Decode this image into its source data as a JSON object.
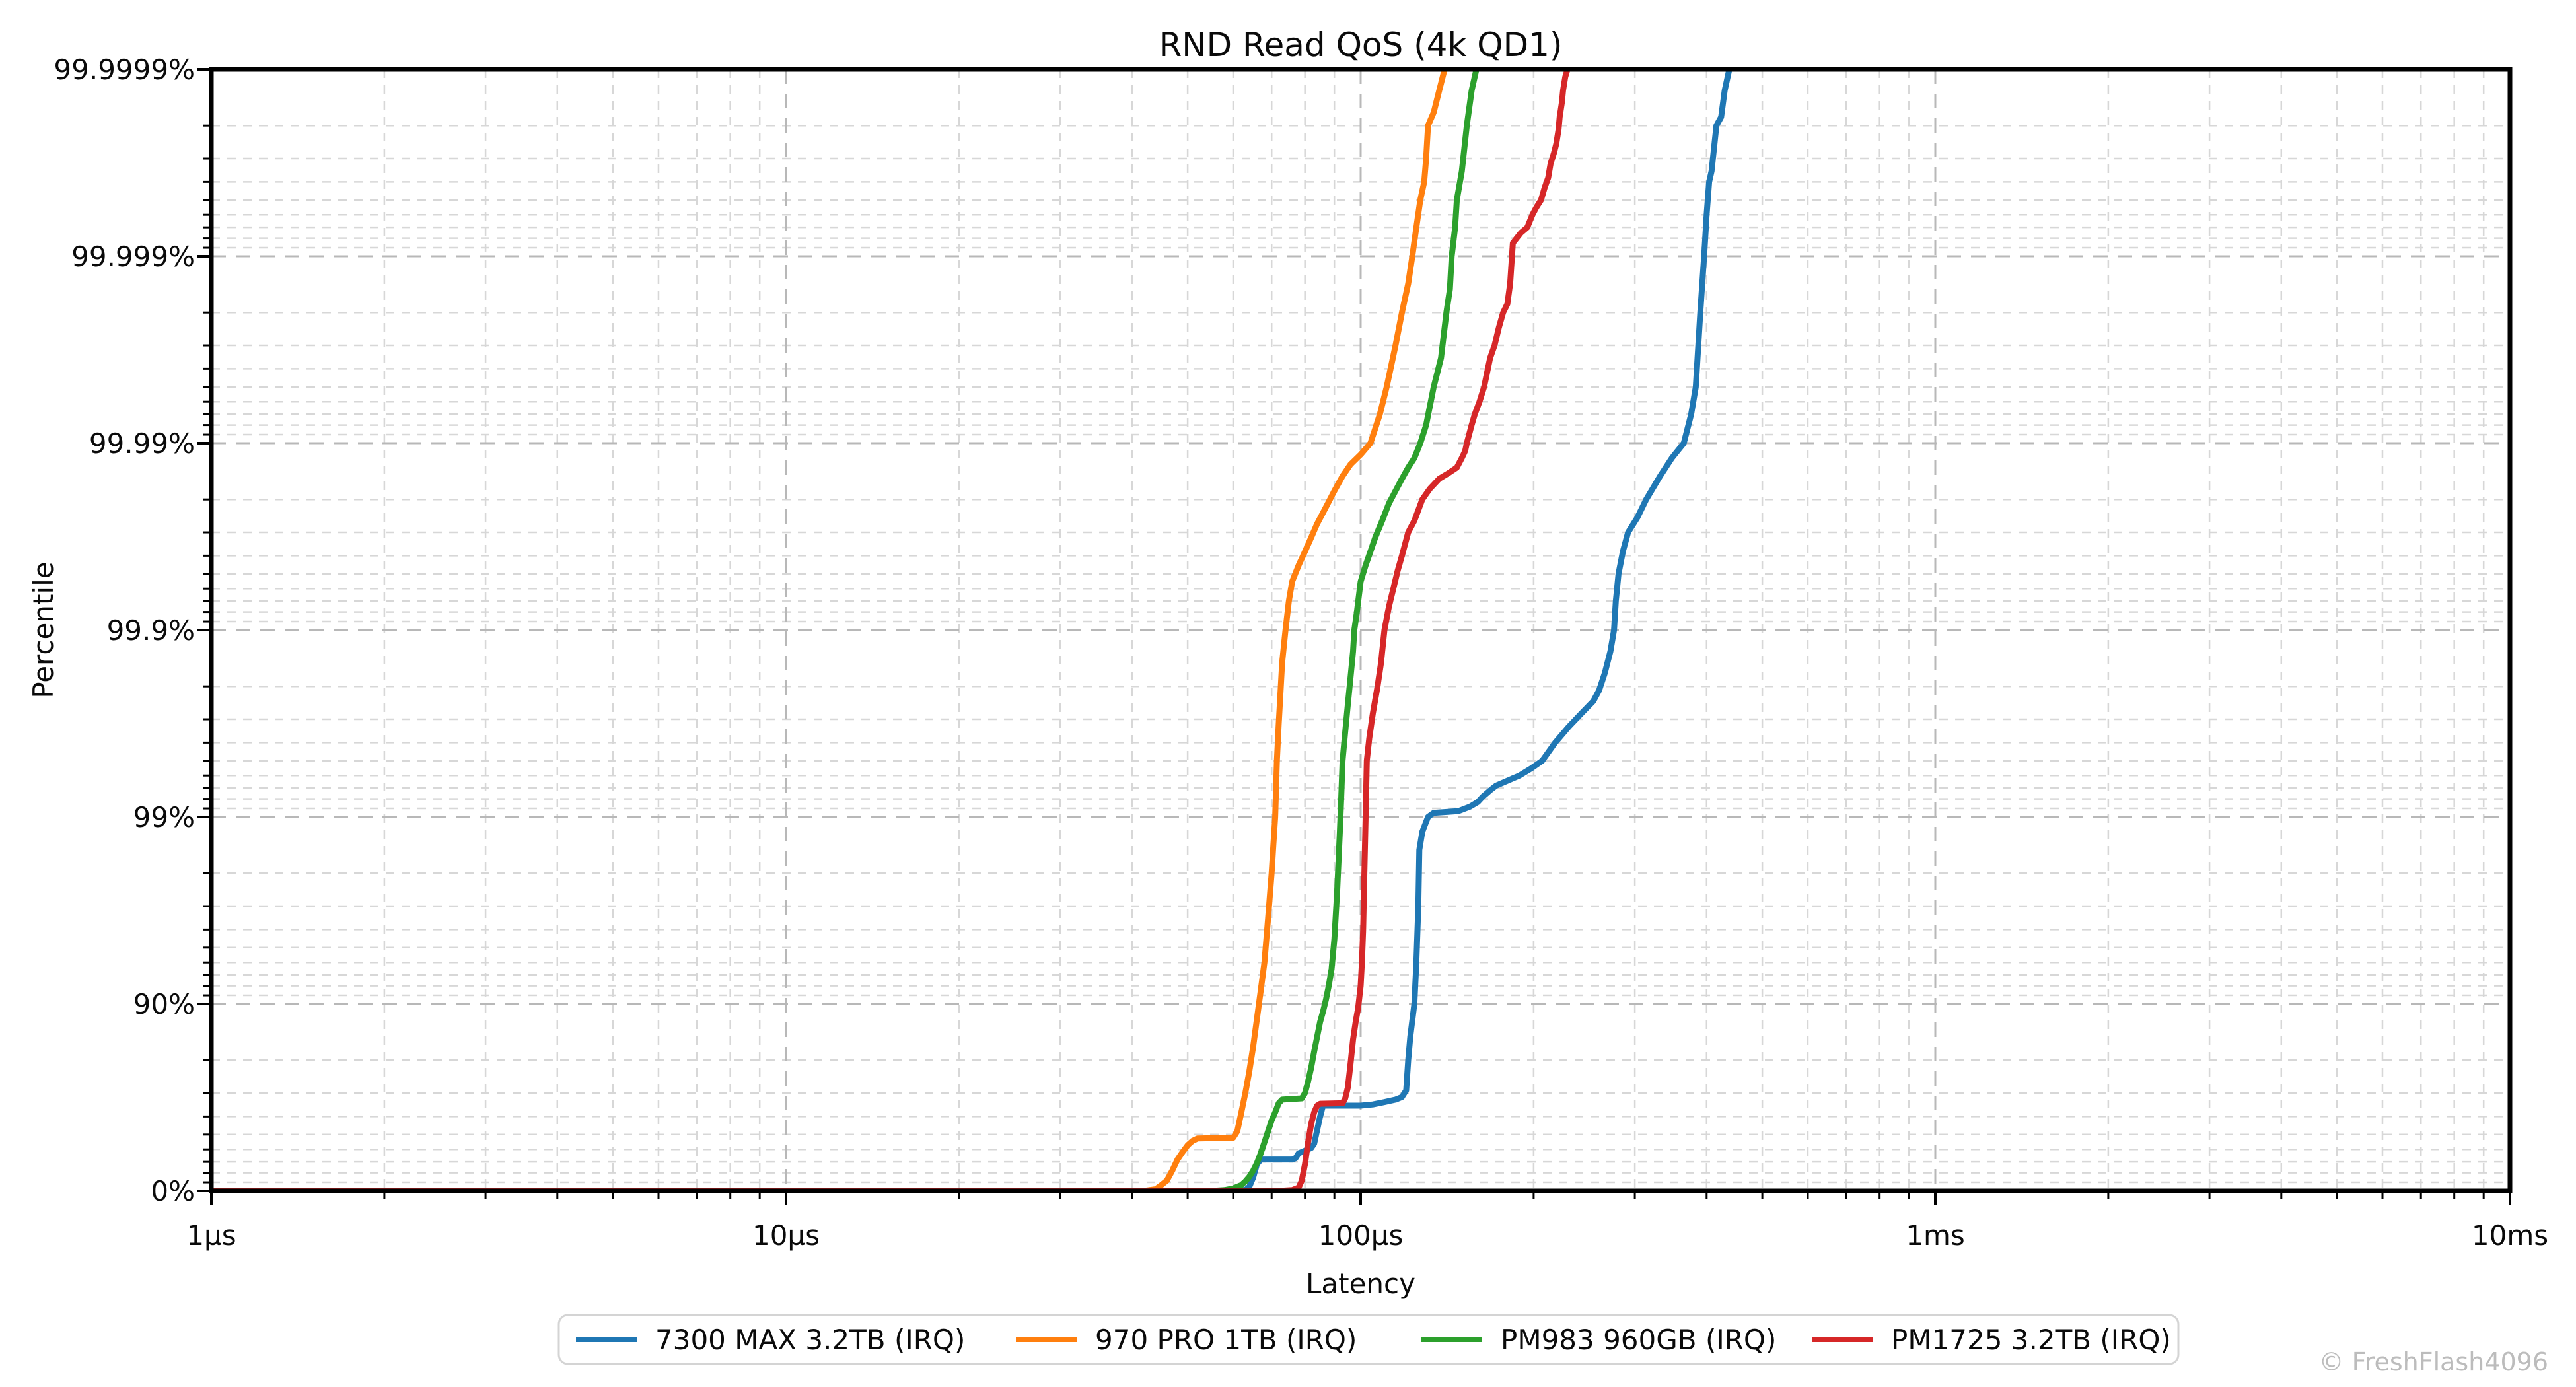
{
  "title": "RND Read QoS (4k QD1)",
  "watermark": "© FreshFlash4096",
  "chart_data": {
    "type": "line",
    "title": "RND Read QoS (4k QD1)",
    "xlabel": "Latency",
    "ylabel": "Percentile",
    "x_scale": "log",
    "x_range_us": [
      1,
      10000
    ],
    "x_tick_labels": [
      "1µs",
      "10µs",
      "100µs",
      "1ms",
      "10ms"
    ],
    "x_tick_values_us": [
      1,
      10,
      100,
      1000,
      10000
    ],
    "y_scale": "percentile, log(1/(1-p)) spacing",
    "y_tick_labels": [
      "0%",
      "90%",
      "99%",
      "99.9%",
      "99.99%",
      "99.999%",
      "99.9999%"
    ],
    "y_tick_values_pct": [
      0,
      90,
      99,
      99.9,
      99.99,
      99.999,
      99.9999
    ],
    "grid": "dashed major and minor, both axes",
    "legend_position": "bottom center",
    "series": [
      {
        "name": "7300 MAX 3.2TB (IRQ)",
        "color": "#1f77b4",
        "points_us_pct": [
          [
            1,
            0
          ],
          [
            55,
            0
          ],
          [
            63,
            1
          ],
          [
            64,
            5
          ],
          [
            65,
            15
          ],
          [
            66,
            28
          ],
          [
            67,
            32
          ],
          [
            76,
            32
          ],
          [
            77,
            33
          ],
          [
            78,
            37
          ],
          [
            80,
            39
          ],
          [
            82,
            41
          ],
          [
            83,
            44
          ],
          [
            85,
            60
          ],
          [
            86,
            65
          ],
          [
            100,
            65
          ],
          [
            105,
            65.5
          ],
          [
            110,
            66.5
          ],
          [
            115,
            67.5
          ],
          [
            118,
            68.5
          ],
          [
            120,
            71
          ],
          [
            121,
            80
          ],
          [
            122,
            85
          ],
          [
            124,
            90
          ],
          [
            125,
            94
          ],
          [
            126,
            97
          ],
          [
            126.5,
            98.5
          ],
          [
            128,
            98.8
          ],
          [
            131,
            99.0
          ],
          [
            134,
            99.05
          ],
          [
            148,
            99.07
          ],
          [
            155,
            99.12
          ],
          [
            160,
            99.17
          ],
          [
            163,
            99.22
          ],
          [
            168,
            99.28
          ],
          [
            172,
            99.32
          ],
          [
            180,
            99.36
          ],
          [
            189,
            99.4
          ],
          [
            198,
            99.45
          ],
          [
            207,
            99.5
          ],
          [
            218,
            99.6
          ],
          [
            230,
            99.67
          ],
          [
            242,
            99.72
          ],
          [
            254,
            99.76
          ],
          [
            260,
            99.79
          ],
          [
            266,
            99.83
          ],
          [
            272,
            99.87
          ],
          [
            276,
            99.9
          ],
          [
            278,
            99.93
          ],
          [
            281,
            99.95
          ],
          [
            286,
            99.962
          ],
          [
            292,
            99.97
          ],
          [
            303,
            99.975
          ],
          [
            314,
            99.98
          ],
          [
            332,
            99.985
          ],
          [
            348,
            99.988
          ],
          [
            365,
            99.99
          ],
          [
            376,
            99.993
          ],
          [
            383,
            99.995
          ],
          [
            390,
            99.998
          ],
          [
            396,
            99.999
          ],
          [
            400,
            99.9994
          ],
          [
            404,
            99.9996
          ],
          [
            408,
            99.99965
          ],
          [
            416,
            99.9998
          ],
          [
            424,
            99.99982
          ],
          [
            430,
            99.99987
          ],
          [
            438,
            99.9999
          ],
          [
            452,
            99.99993
          ],
          [
            462,
            99.99996
          ]
        ]
      },
      {
        "name": "970 PRO 1TB (IRQ)",
        "color": "#ff7f0e",
        "points_us_pct": [
          [
            1,
            0
          ],
          [
            42,
            0
          ],
          [
            44,
            2
          ],
          [
            45,
            7
          ],
          [
            46,
            12
          ],
          [
            47,
            22
          ],
          [
            48,
            32
          ],
          [
            49,
            38
          ],
          [
            50,
            43
          ],
          [
            51,
            46
          ],
          [
            52,
            47.5
          ],
          [
            60,
            48
          ],
          [
            61,
            52
          ],
          [
            62,
            62
          ],
          [
            63,
            70
          ],
          [
            64,
            77
          ],
          [
            65,
            83
          ],
          [
            66,
            88
          ],
          [
            67,
            91.5
          ],
          [
            68,
            94
          ],
          [
            69,
            96.5
          ],
          [
            70,
            98
          ],
          [
            70.5,
            98.6
          ],
          [
            71,
            99
          ],
          [
            71.5,
            99.5
          ],
          [
            72,
            99.68
          ],
          [
            72.5,
            99.78
          ],
          [
            73,
            99.85
          ],
          [
            74,
            99.9
          ],
          [
            75,
            99.93
          ],
          [
            76,
            99.945
          ],
          [
            78,
            99.955
          ],
          [
            80,
            99.962
          ],
          [
            82,
            99.968
          ],
          [
            84,
            99.973
          ],
          [
            87,
            99.978
          ],
          [
            90,
            99.982
          ],
          [
            93,
            99.985
          ],
          [
            96,
            99.987
          ],
          [
            100,
            99.9885
          ],
          [
            104,
            99.99
          ],
          [
            108,
            99.993
          ],
          [
            111,
            99.995
          ],
          [
            115,
            99.997
          ],
          [
            118,
            99.998
          ],
          [
            121,
            99.9986
          ],
          [
            123,
            99.999
          ],
          [
            125,
            99.9993
          ],
          [
            127,
            99.9995
          ],
          [
            129,
            99.9996
          ],
          [
            130,
            99.9997
          ],
          [
            131,
            99.9998
          ],
          [
            134,
            99.99983
          ],
          [
            137,
            99.99987
          ],
          [
            140,
            99.9999
          ],
          [
            145,
            99.99993
          ],
          [
            150,
            99.99996
          ]
        ]
      },
      {
        "name": "PM983 960GB (IRQ)",
        "color": "#2ca02c",
        "points_us_pct": [
          [
            1,
            0
          ],
          [
            55,
            0
          ],
          [
            58,
            1
          ],
          [
            60,
            3
          ],
          [
            62,
            7
          ],
          [
            63,
            11
          ],
          [
            64,
            16
          ],
          [
            65,
            22
          ],
          [
            66,
            29
          ],
          [
            67,
            37
          ],
          [
            68,
            45
          ],
          [
            69,
            52
          ],
          [
            70,
            58
          ],
          [
            71,
            62
          ],
          [
            72,
            66
          ],
          [
            73,
            67.5
          ],
          [
            79,
            68
          ],
          [
            80,
            70
          ],
          [
            81,
            74
          ],
          [
            82,
            78
          ],
          [
            83,
            82
          ],
          [
            84,
            85
          ],
          [
            85,
            87.5
          ],
          [
            86,
            89
          ],
          [
            87,
            90.5
          ],
          [
            88,
            92
          ],
          [
            89,
            93.5
          ],
          [
            90,
            95.5
          ],
          [
            91,
            97.5
          ],
          [
            92,
            98.8
          ],
          [
            92.5,
            99.2
          ],
          [
            93,
            99.5
          ],
          [
            94,
            99.65
          ],
          [
            95,
            99.75
          ],
          [
            96,
            99.82
          ],
          [
            97,
            99.87
          ],
          [
            97.5,
            99.9
          ],
          [
            98.5,
            99.92
          ],
          [
            100,
            99.945
          ],
          [
            102,
            99.955
          ],
          [
            104,
            99.962
          ],
          [
            106,
            99.968
          ],
          [
            109,
            99.974
          ],
          [
            112,
            99.979
          ],
          [
            115,
            99.982
          ],
          [
            118,
            99.9845
          ],
          [
            121,
            99.9865
          ],
          [
            124,
            99.988
          ],
          [
            127,
            99.99
          ],
          [
            130,
            99.992
          ],
          [
            134,
            99.995
          ],
          [
            138,
            99.9965
          ],
          [
            141,
            99.998
          ],
          [
            143,
            99.9985
          ],
          [
            144,
            99.999
          ],
          [
            146,
            99.9993
          ],
          [
            147,
            99.9995
          ],
          [
            150,
            99.99965
          ],
          [
            153,
            99.9998
          ],
          [
            156,
            99.99987
          ],
          [
            159,
            99.9999
          ],
          [
            162,
            99.99995
          ]
        ]
      },
      {
        "name": "PM1725 3.2TB (IRQ)",
        "color": "#d62728",
        "points_us_pct": [
          [
            1,
            0
          ],
          [
            72,
            0
          ],
          [
            76,
            1
          ],
          [
            78,
            4
          ],
          [
            79,
            12
          ],
          [
            80,
            28
          ],
          [
            81,
            45
          ],
          [
            82,
            56
          ],
          [
            83,
            62
          ],
          [
            84,
            65
          ],
          [
            85,
            65.8
          ],
          [
            93,
            66
          ],
          [
            94,
            68
          ],
          [
            95,
            72
          ],
          [
            96,
            79
          ],
          [
            97,
            84.5
          ],
          [
            98,
            87.5
          ],
          [
            99,
            89.5
          ],
          [
            100,
            92
          ],
          [
            100.5,
            94
          ],
          [
            101,
            96
          ],
          [
            101.5,
            98
          ],
          [
            102,
            99
          ],
          [
            102.5,
            99.5
          ],
          [
            103.5,
            99.62
          ],
          [
            105,
            99.72
          ],
          [
            107,
            99.8
          ],
          [
            108.5,
            99.85
          ],
          [
            110,
            99.9
          ],
          [
            112,
            99.925
          ],
          [
            114,
            99.94
          ],
          [
            116,
            99.952
          ],
          [
            118,
            99.96
          ],
          [
            121,
            99.97
          ],
          [
            124,
            99.974
          ],
          [
            128,
            99.98
          ],
          [
            132,
            99.9825
          ],
          [
            137,
            99.9845
          ],
          [
            142,
            99.9855
          ],
          [
            147,
            99.9865
          ],
          [
            150,
            99.988
          ],
          [
            152,
            99.989
          ],
          [
            153,
            99.99
          ],
          [
            156,
            99.992
          ],
          [
            158,
            99.993
          ],
          [
            161,
            99.994
          ],
          [
            164,
            99.995
          ],
          [
            168,
            99.9965
          ],
          [
            171,
            99.997
          ],
          [
            174,
            99.9976
          ],
          [
            177,
            99.998
          ],
          [
            180,
            99.9982
          ],
          [
            182,
            99.9986
          ],
          [
            183,
            99.9989
          ],
          [
            184,
            99.99915
          ],
          [
            190,
            99.99925
          ],
          [
            195,
            99.9993
          ],
          [
            199,
            99.9994
          ],
          [
            202,
            99.99945
          ],
          [
            206,
            99.9995
          ],
          [
            209,
            99.99957
          ],
          [
            212,
            99.99962
          ],
          [
            214,
            99.99968
          ],
          [
            217,
            99.99972
          ],
          [
            219,
            99.99975
          ],
          [
            221,
            99.99979
          ],
          [
            222,
            99.99982
          ],
          [
            224,
            99.99985
          ],
          [
            225,
            99.99987
          ],
          [
            227,
            99.99989
          ],
          [
            229,
            99.9999
          ],
          [
            232,
            99.99994
          ]
        ]
      }
    ]
  }
}
